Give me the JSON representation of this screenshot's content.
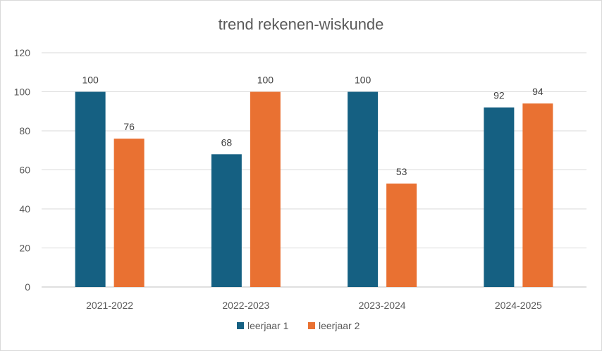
{
  "chart_data": {
    "type": "bar",
    "title": "trend rekenen-wiskunde",
    "xlabel": "",
    "ylabel": "",
    "categories": [
      "2021-2022",
      "2022-2023",
      "2023-2024",
      "2024-2025"
    ],
    "series": [
      {
        "name": "leerjaar 1",
        "color": "#156082",
        "values": [
          100,
          68,
          100,
          92
        ]
      },
      {
        "name": "leerjaar 2",
        "color": "#E97132",
        "values": [
          76,
          100,
          53,
          94
        ]
      }
    ],
    "ylim": [
      0,
      120
    ],
    "yticks": [
      0,
      20,
      40,
      60,
      80,
      100,
      120
    ],
    "grid": true,
    "legend_position": "bottom",
    "data_labels": true
  }
}
